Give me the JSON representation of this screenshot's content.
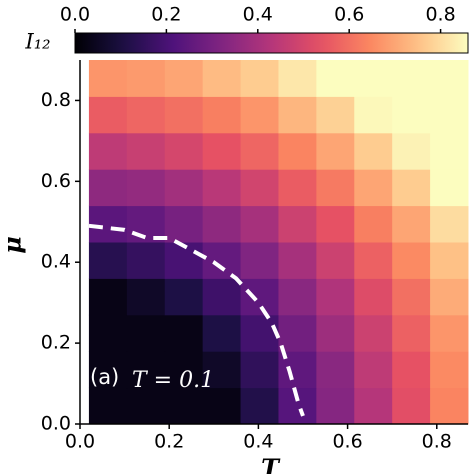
{
  "chart_data": {
    "type": "heatmap",
    "xlabel": "T",
    "ylabel": "μ",
    "colorbar_label": "I₁₂",
    "colormap": "magma",
    "clim": [
      0,
      0.86
    ],
    "cticks": [
      {
        "value": 0,
        "label": "0.0"
      },
      {
        "value": 0.2,
        "label": "0.2"
      },
      {
        "value": 0.4,
        "label": "0.4"
      },
      {
        "value": 0.6,
        "label": "0.6"
      },
      {
        "value": 0.8,
        "label": "0.8"
      }
    ],
    "xlim": [
      0,
      0.87
    ],
    "ylim": [
      0,
      0.9
    ],
    "xticks": [
      {
        "value": 0,
        "label": "0.0"
      },
      {
        "value": 0.2,
        "label": "0.2"
      },
      {
        "value": 0.4,
        "label": "0.4"
      },
      {
        "value": 0.6,
        "label": "0.6"
      },
      {
        "value": 0.8,
        "label": "0.8"
      }
    ],
    "yticks": [
      {
        "value": 0,
        "label": "0.0"
      },
      {
        "value": 0.2,
        "label": "0.2"
      },
      {
        "value": 0.4,
        "label": "0.4"
      },
      {
        "value": 0.6,
        "label": "0.6"
      },
      {
        "value": 0.8,
        "label": "0.8"
      }
    ],
    "xbins": [
      0.02,
      0.105,
      0.19,
      0.275,
      0.36,
      0.445,
      0.53,
      0.615,
      0.7,
      0.785,
      0.87
    ],
    "ybins": [
      0,
      0.09,
      0.18,
      0.27,
      0.36,
      0.45,
      0.54,
      0.63,
      0.72,
      0.81,
      0.9
    ],
    "values": [
      [
        0.03,
        0.03,
        0.03,
        0.03,
        0.12,
        0.23,
        0.33,
        0.43,
        0.53,
        0.64
      ],
      [
        0.03,
        0.03,
        0.03,
        0.06,
        0.15,
        0.25,
        0.34,
        0.45,
        0.54,
        0.65
      ],
      [
        0.03,
        0.03,
        0.03,
        0.11,
        0.19,
        0.29,
        0.38,
        0.48,
        0.57,
        0.67
      ],
      [
        0.03,
        0.06,
        0.11,
        0.18,
        0.25,
        0.34,
        0.42,
        0.52,
        0.6,
        0.71
      ],
      [
        0.13,
        0.16,
        0.2,
        0.26,
        0.32,
        0.4,
        0.48,
        0.57,
        0.65,
        0.75
      ],
      [
        0.24,
        0.26,
        0.3,
        0.35,
        0.4,
        0.48,
        0.54,
        0.63,
        0.7,
        0.8
      ],
      [
        0.35,
        0.36,
        0.39,
        0.44,
        0.49,
        0.56,
        0.62,
        0.7,
        0.77,
        0.86
      ],
      [
        0.45,
        0.47,
        0.5,
        0.54,
        0.58,
        0.64,
        0.7,
        0.77,
        0.84,
        0.87
      ],
      [
        0.56,
        0.58,
        0.6,
        0.63,
        0.67,
        0.73,
        0.78,
        0.85,
        0.87,
        0.87
      ],
      [
        0.67,
        0.68,
        0.7,
        0.74,
        0.77,
        0.82,
        0.87,
        0.87,
        0.87,
        0.87
      ]
    ],
    "boundary": {
      "color": "#ffffff",
      "dashed": true,
      "x": [
        0.02,
        0.1,
        0.15,
        0.2,
        0.25,
        0.3,
        0.35,
        0.4,
        0.43,
        0.45,
        0.47,
        0.49,
        0.5
      ],
      "y": [
        0.49,
        0.48,
        0.46,
        0.46,
        0.43,
        0.4,
        0.36,
        0.3,
        0.25,
        0.2,
        0.13,
        0.05,
        0.02
      ]
    },
    "annotations": [
      "(a)",
      "T = 0.1"
    ]
  }
}
